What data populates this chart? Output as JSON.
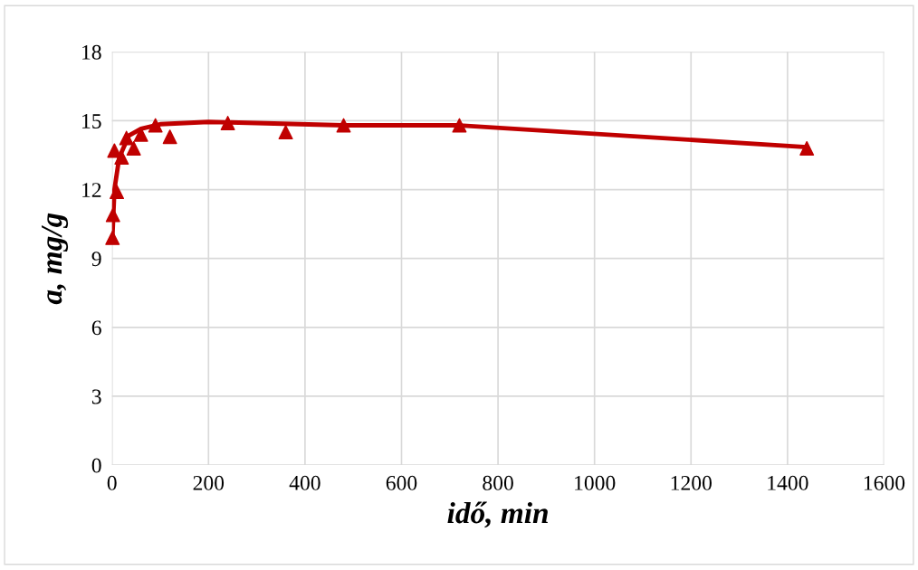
{
  "chart_data": {
    "type": "scatter",
    "xlabel": "idő, min",
    "ylabel": "a, mg/g",
    "xlim": [
      0,
      1600
    ],
    "ylim": [
      0,
      18
    ],
    "xticks": [
      0,
      200,
      400,
      600,
      800,
      1000,
      1200,
      1400,
      1600
    ],
    "yticks": [
      0,
      3,
      6,
      9,
      12,
      15,
      18
    ],
    "grid": true,
    "marker": "triangle",
    "series": [
      {
        "color": "#c00000",
        "x": [
          1,
          2,
          5,
          10,
          20,
          30,
          45,
          60,
          90,
          120,
          240,
          360,
          480,
          720,
          1440
        ],
        "values": [
          9.9,
          10.9,
          13.7,
          11.9,
          13.4,
          14.25,
          13.8,
          14.4,
          14.8,
          14.3,
          14.9,
          14.5,
          14.8,
          14.8,
          13.8
        ]
      },
      {
        "type": "line",
        "color": "#c00000",
        "marker": "none",
        "x": [
          1,
          5,
          15,
          35,
          60,
          100,
          200,
          300,
          480,
          720,
          1440
        ],
        "values": [
          10.0,
          12.0,
          13.4,
          14.35,
          14.65,
          14.85,
          14.95,
          14.9,
          14.8,
          14.8,
          13.85
        ]
      }
    ]
  }
}
